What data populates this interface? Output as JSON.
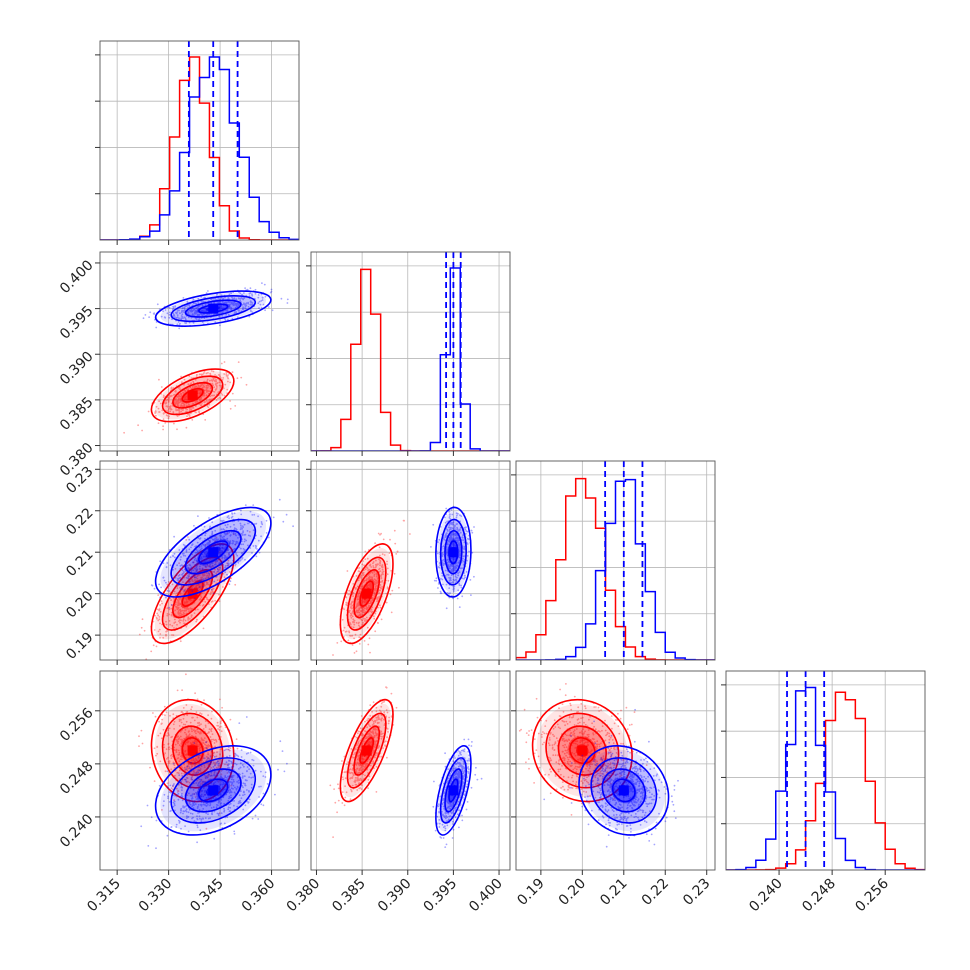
{
  "chart_data": {
    "type": "corner",
    "title": "",
    "grid": true,
    "parameters": [
      {
        "index": 0,
        "range": [
          0.31,
          0.368
        ],
        "ticks": [
          "0.315",
          "0.330",
          "0.345",
          "0.360"
        ],
        "tick_values": [
          0.315,
          0.33,
          0.345,
          0.36
        ]
      },
      {
        "index": 1,
        "range": [
          0.3794,
          0.4012
        ],
        "ticks": [
          "0.380",
          "0.385",
          "0.390",
          "0.395",
          "0.400"
        ],
        "tick_values": [
          0.38,
          0.385,
          0.39,
          0.395,
          0.4
        ]
      },
      {
        "index": 2,
        "range": [
          0.184,
          0.232
        ],
        "ticks": [
          "0.19",
          "0.20",
          "0.21",
          "0.22",
          "0.23"
        ],
        "tick_values": [
          0.19,
          0.2,
          0.21,
          0.22,
          0.23
        ]
      },
      {
        "index": 3,
        "range": [
          0.232,
          0.262
        ],
        "ticks": [
          "0.240",
          "0.248",
          "0.256"
        ],
        "tick_values": [
          0.24,
          0.248,
          0.256
        ]
      }
    ],
    "series": [
      {
        "color": "#ff0000",
        "means": [
          0.337,
          0.3855,
          0.2,
          0.25
        ],
        "sigmas": [
          0.005,
          0.0012,
          0.005,
          0.0032
        ],
        "correlations": {
          "1-0": 0.55,
          "2-0": 0.7,
          "2-1": 0.6,
          "3-0": -0.1,
          "3-1": 0.7,
          "3-2": -0.1
        },
        "quantiles": []
      },
      {
        "color": "#0000ff",
        "means": [
          0.343,
          0.395,
          0.21,
          0.244
        ],
        "sigmas": [
          0.007,
          0.0008,
          0.0045,
          0.0028
        ],
        "correlations": {
          "1-0": 0.5,
          "2-0": 0.65,
          "2-1": 0.05,
          "3-0": 0.35,
          "3-1": 0.6,
          "3-2": -0.15
        },
        "quantiles": [
          [
            0.3359,
            0.343,
            0.3501
          ],
          [
            0.3942,
            0.395,
            0.3958
          ],
          [
            0.2055,
            0.21,
            0.2145
          ],
          [
            0.2412,
            0.244,
            0.2468
          ]
        ]
      }
    ]
  }
}
